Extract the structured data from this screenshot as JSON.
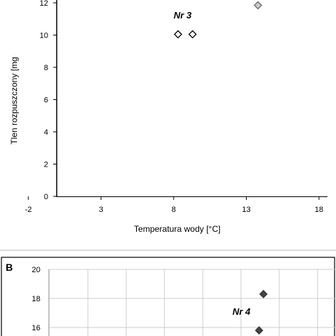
{
  "chart_data": [
    {
      "type": "scatter",
      "panel": "",
      "xlabel": "Temperatura wody [°C]",
      "ylabel": "Tlen rozpuszczony [mg",
      "xticks": [
        "-2",
        "3",
        "8",
        "13",
        "18"
      ],
      "yticks": [
        "0",
        "2",
        "4",
        "6",
        "8",
        "10",
        "12"
      ],
      "xlim": [
        -2,
        18
      ],
      "ylim": [
        0,
        12
      ],
      "grid": false,
      "annotations": [
        {
          "text": "Nr 3",
          "x": 8.6,
          "y": 11.2
        }
      ],
      "series": [
        {
          "marker": "diamond-open",
          "points": [
            {
              "x": 8.3,
              "y": 10.05
            },
            {
              "x": 9.3,
              "y": 10.05
            }
          ]
        },
        {
          "marker": "diamond-hatched",
          "points": [
            {
              "x": 13.8,
              "y": 11.85
            }
          ]
        }
      ]
    },
    {
      "type": "scatter",
      "panel": "B",
      "xlabel": "",
      "ylabel": "",
      "yticks": [
        "16",
        "18",
        "20"
      ],
      "xlim": [
        -2,
        18
      ],
      "ylim": [
        15.5,
        20
      ],
      "grid": true,
      "annotations": [
        {
          "text": "Nr 4",
          "x": 12.3,
          "y": 16.9
        }
      ],
      "series": [
        {
          "marker": "diamond-filled",
          "points": [
            {
              "x": 13.3,
              "y": 18.3
            },
            {
              "x": 13.0,
              "y": 15.8
            }
          ]
        }
      ]
    }
  ]
}
